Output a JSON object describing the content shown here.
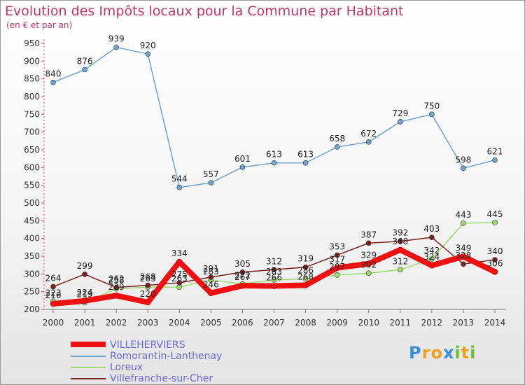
{
  "chart_data": {
    "type": "line",
    "title": "Evolution des Impôts locaux pour la Commune par Habitant",
    "subtitle": "(en € et par an)",
    "x": [
      "2000",
      "2001",
      "2002",
      "2003",
      "2004",
      "2005",
      "2006",
      "2007",
      "2008",
      "2009",
      "2010",
      "2011",
      "2012",
      "2013",
      "2014"
    ],
    "ylim": [
      200,
      950
    ],
    "yticks": [
      200,
      250,
      300,
      350,
      400,
      450,
      500,
      550,
      600,
      650,
      700,
      750,
      800,
      850,
      900,
      950
    ],
    "grid": false,
    "legend_position": "bottom-left",
    "series": [
      {
        "name": "VILLEHERVIERS",
        "color": "#ee1111",
        "width": 8,
        "values": [
          216,
          224,
          239,
          220,
          334,
          246,
          267,
          266,
          268,
          317,
          329,
          368,
          324,
          349,
          306
        ]
      },
      {
        "name": "Romorantin-Lanthenay",
        "color": "#6fa3d2",
        "width": 1.5,
        "values": [
          840,
          876,
          939,
          920,
          544,
          557,
          601,
          613,
          613,
          658,
          672,
          729,
          750,
          598,
          621
        ]
      },
      {
        "name": "Loreux",
        "color": "#9fdb6a",
        "width": 1.5,
        "values": [
          223,
          219,
          258,
          263,
          263,
          283,
          272,
          283,
          286,
          297,
          302,
          312,
          342,
          443,
          445
        ]
      },
      {
        "name": "Villefranche-sur-Cher",
        "color": "#7a2020",
        "width": 1.5,
        "values": [
          264,
          299,
          262,
          268,
          275,
          291,
          305,
          312,
          319,
          353,
          387,
          392,
          403,
          328,
          340
        ]
      }
    ]
  },
  "logo": {
    "letters": [
      {
        "ch": "P",
        "color": "#3a8fd8"
      },
      {
        "ch": "r",
        "color": "#f0a020"
      },
      {
        "ch": "o",
        "color": "#f0a020"
      },
      {
        "ch": "x",
        "color": "#3a8fd8"
      },
      {
        "ch": "i",
        "color": "#6cc030"
      },
      {
        "ch": "t",
        "color": "#f0a020"
      },
      {
        "ch": "i",
        "color": "#6cc030"
      }
    ]
  }
}
